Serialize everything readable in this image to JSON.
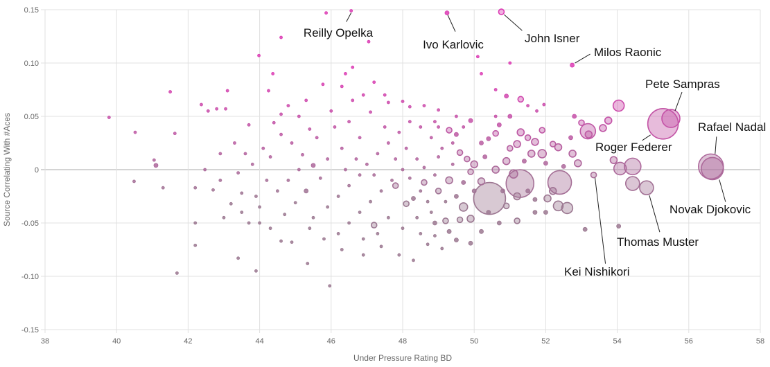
{
  "chart_data": {
    "type": "scatter",
    "title": "",
    "xlabel": "Under Pressure Rating BD",
    "ylabel": "Source Correlating With #Aces",
    "xlim": [
      38,
      58
    ],
    "ylim": [
      -0.15,
      0.15
    ],
    "xticks": [
      "38",
      "40",
      "42",
      "44",
      "46",
      "48",
      "50",
      "52",
      "54",
      "56",
      "58"
    ],
    "yticks": [
      "0.15",
      "0.10",
      "0.05",
      "0",
      "-0.05",
      "-0.10",
      "-0.15"
    ],
    "grid": true,
    "colors": {
      "high": "#dc3cb4",
      "low": "#9b7891",
      "zero_line": "#aaaaaa",
      "grid": "#e0e0e0"
    },
    "annotations": [
      {
        "label": "Reilly Opelka",
        "x": 46.56,
        "y": 0.149,
        "size": 2
      },
      {
        "label": "Ivo Karlovic",
        "x": 49.24,
        "y": 0.147,
        "size": 3
      },
      {
        "label": "John Isner",
        "x": 50.76,
        "y": 0.148,
        "size": 4
      },
      {
        "label": "Milos Raonic",
        "x": 52.74,
        "y": 0.098,
        "size": 3
      },
      {
        "label": "Pete Sampras",
        "x": 55.5,
        "y": 0.048,
        "size": 13
      },
      {
        "label": "Roger Federer",
        "x": 55.28,
        "y": 0.043,
        "size": 22
      },
      {
        "label": "Rafael Nadal",
        "x": 56.62,
        "y": 0.003,
        "size": 18
      },
      {
        "label": "Novak Djokovic",
        "x": 56.66,
        "y": 0.001,
        "size": 16
      },
      {
        "label": "Thomas Muster",
        "x": 54.82,
        "y": -0.017,
        "size": 10
      },
      {
        "label": "Kei Nishikori",
        "x": 53.34,
        "y": -0.005,
        "size": 4
      }
    ],
    "points": [
      [
        50.43,
        -0.027,
        23
      ],
      [
        51.28,
        -0.013,
        20
      ],
      [
        52.39,
        -0.012,
        17
      ],
      [
        54.43,
        0.003,
        12
      ],
      [
        54.08,
        0.001,
        9
      ],
      [
        54.43,
        -0.013,
        10
      ],
      [
        53.18,
        0.036,
        11
      ],
      [
        54.04,
        0.06,
        8
      ],
      [
        53.6,
        0.039,
        5
      ],
      [
        53.75,
        0.046,
        5
      ],
      [
        53.9,
        0.009,
        5
      ],
      [
        52.6,
        -0.036,
        8
      ],
      [
        52.35,
        -0.034,
        7
      ],
      [
        52.2,
        -0.02,
        5
      ],
      [
        51.9,
        0.015,
        6
      ],
      [
        52.05,
        -0.027,
        5
      ],
      [
        51.2,
        0.024,
        5
      ],
      [
        51.3,
        0.035,
        5
      ],
      [
        51.5,
        0.03,
        4
      ],
      [
        51.6,
        0.015,
        5
      ],
      [
        51.0,
        0.02,
        4
      ],
      [
        50.9,
        0.008,
        5
      ],
      [
        51.1,
        -0.004,
        6
      ],
      [
        50.6,
        0.0,
        5
      ],
      [
        51.7,
        0.026,
        5
      ],
      [
        51.9,
        0.037,
        4
      ],
      [
        52.2,
        0.024,
        4
      ],
      [
        52.35,
        0.021,
        5
      ],
      [
        52.75,
        0.015,
        5
      ],
      [
        52.9,
        0.006,
        5
      ],
      [
        53.2,
        0.033,
        5
      ],
      [
        52.8,
        0.05,
        3
      ],
      [
        51.3,
        0.066,
        4
      ],
      [
        51.0,
        0.05,
        3
      ],
      [
        50.6,
        0.034,
        4
      ],
      [
        50.4,
        0.029,
        3
      ],
      [
        49.5,
        0.033,
        3
      ],
      [
        49.3,
        0.037,
        4
      ],
      [
        49.6,
        0.016,
        4
      ],
      [
        49.8,
        0.01,
        4
      ],
      [
        50.0,
        0.005,
        5
      ],
      [
        49.9,
        -0.002,
        4
      ],
      [
        50.2,
        -0.011,
        5
      ],
      [
        49.7,
        -0.035,
        6
      ],
      [
        49.9,
        -0.046,
        5
      ],
      [
        49.6,
        -0.047,
        4
      ],
      [
        49.2,
        -0.048,
        4
      ],
      [
        48.9,
        -0.05,
        3
      ],
      [
        49.3,
        -0.01,
        5
      ],
      [
        49.0,
        -0.02,
        4
      ],
      [
        48.6,
        -0.012,
        4
      ],
      [
        48.3,
        -0.027,
        3
      ],
      [
        48.1,
        -0.032,
        4
      ],
      [
        47.8,
        -0.015,
        4
      ],
      [
        47.2,
        -0.052,
        4
      ],
      [
        51.2,
        -0.048,
        4
      ],
      [
        51.2,
        -0.025,
        5
      ],
      [
        50.9,
        -0.034,
        4
      ],
      [
        51.7,
        -0.04,
        3
      ],
      [
        51.5,
        -0.02,
        3
      ],
      [
        49.9,
        -0.069,
        3
      ],
      [
        49.5,
        -0.066,
        3
      ],
      [
        51.75,
        0.055,
        2
      ],
      [
        51.5,
        0.06,
        2
      ],
      [
        50.9,
        0.069,
        3
      ],
      [
        51.0,
        0.1,
        2
      ],
      [
        50.2,
        0.09,
        2
      ],
      [
        50.1,
        0.106,
        2
      ],
      [
        50.6,
        0.075,
        2
      ],
      [
        49.9,
        0.046,
        3
      ],
      [
        49.5,
        0.05,
        2
      ],
      [
        49.0,
        0.056,
        2
      ],
      [
        48.6,
        0.06,
        2
      ],
      [
        48.2,
        0.059,
        2
      ],
      [
        47.6,
        0.063,
        2
      ],
      [
        47.1,
        0.054,
        2
      ],
      [
        46.5,
        0.045,
        2
      ],
      [
        46.9,
        0.07,
        2
      ],
      [
        46.4,
        0.09,
        2
      ],
      [
        46.6,
        0.096,
        2
      ],
      [
        47.05,
        0.12,
        2
      ],
      [
        45.86,
        0.147,
        2
      ],
      [
        45.77,
        0.08,
        2
      ],
      [
        47.5,
        0.07,
        2
      ],
      [
        44.6,
        0.124,
        2
      ],
      [
        44.37,
        0.09,
        2
      ],
      [
        43.98,
        0.107,
        2
      ],
      [
        44.25,
        0.074,
        2
      ],
      [
        43.1,
        0.074,
        2
      ],
      [
        43.7,
        0.042,
        2
      ],
      [
        43.05,
        0.057,
        2
      ],
      [
        42.8,
        0.057,
        2
      ],
      [
        42.56,
        0.055,
        2
      ],
      [
        42.37,
        0.061,
        2
      ],
      [
        41.5,
        0.073,
        2
      ],
      [
        41.63,
        0.034,
        2
      ],
      [
        40.52,
        0.035,
        2
      ],
      [
        39.79,
        0.049,
        2
      ],
      [
        41.05,
        0.009,
        2
      ],
      [
        41.1,
        0.004,
        3
      ],
      [
        40.49,
        -0.011,
        2
      ],
      [
        41.3,
        -0.017,
        2
      ],
      [
        42.47,
        0.0,
        2
      ],
      [
        42.2,
        -0.017,
        2
      ],
      [
        42.2,
        -0.05,
        2
      ],
      [
        42.2,
        -0.071,
        2
      ],
      [
        41.69,
        -0.097,
        2
      ],
      [
        43.4,
        -0.083,
        2
      ],
      [
        43.9,
        -0.095,
        2
      ],
      [
        44.6,
        -0.067,
        2
      ],
      [
        44.9,
        -0.068,
        2
      ],
      [
        45.34,
        -0.088,
        2
      ],
      [
        45.96,
        -0.109,
        2
      ],
      [
        44.0,
        -0.05,
        2
      ],
      [
        43.7,
        -0.05,
        2
      ],
      [
        43.2,
        -0.032,
        2
      ],
      [
        43.5,
        -0.022,
        2
      ],
      [
        42.7,
        -0.019,
        2
      ],
      [
        42.9,
        -0.01,
        2
      ],
      [
        43.4,
        -0.003,
        2
      ],
      [
        43.8,
        0.005,
        2
      ],
      [
        44.1,
        0.02,
        2
      ],
      [
        44.6,
        0.033,
        2
      ],
      [
        44.4,
        0.044,
        2
      ],
      [
        44.9,
        0.025,
        2
      ],
      [
        45.2,
        0.014,
        2
      ],
      [
        45.5,
        0.004,
        3
      ],
      [
        45.7,
        -0.008,
        2
      ],
      [
        45.3,
        -0.02,
        3
      ],
      [
        45.0,
        -0.031,
        2
      ],
      [
        44.7,
        -0.042,
        2
      ],
      [
        45.5,
        -0.045,
        2
      ],
      [
        45.9,
        -0.035,
        2
      ],
      [
        46.2,
        -0.025,
        2
      ],
      [
        46.5,
        -0.015,
        2
      ],
      [
        46.8,
        -0.005,
        2
      ],
      [
        47.0,
        0.005,
        2
      ],
      [
        47.3,
        0.015,
        2
      ],
      [
        47.6,
        0.025,
        2
      ],
      [
        47.9,
        0.035,
        2
      ],
      [
        48.2,
        0.045,
        2
      ],
      [
        48.5,
        0.04,
        2
      ],
      [
        48.8,
        0.03,
        2
      ],
      [
        49.1,
        0.02,
        2
      ],
      [
        48.4,
        0.01,
        2
      ],
      [
        48.0,
        0.0,
        2
      ],
      [
        47.7,
        -0.01,
        2
      ],
      [
        47.4,
        -0.02,
        2
      ],
      [
        47.1,
        -0.03,
        2
      ],
      [
        46.8,
        -0.04,
        2
      ],
      [
        46.5,
        -0.05,
        2
      ],
      [
        46.2,
        -0.06,
        2
      ],
      [
        46.9,
        -0.065,
        2
      ],
      [
        47.4,
        -0.072,
        2
      ],
      [
        47.9,
        -0.08,
        2
      ],
      [
        48.3,
        -0.085,
        2
      ],
      [
        48.7,
        -0.07,
        2
      ],
      [
        49.1,
        -0.074,
        2
      ],
      [
        48.5,
        -0.06,
        2
      ],
      [
        48.0,
        -0.055,
        2
      ],
      [
        47.6,
        -0.045,
        2
      ],
      [
        48.8,
        -0.04,
        2
      ],
      [
        49.2,
        -0.03,
        2
      ],
      [
        48.5,
        -0.02,
        2
      ],
      [
        48.9,
        -0.005,
        2
      ],
      [
        49.4,
        0.005,
        2
      ],
      [
        48.1,
        0.02,
        2
      ],
      [
        47.5,
        0.04,
        2
      ],
      [
        46.8,
        0.03,
        2
      ],
      [
        46.3,
        0.02,
        2
      ],
      [
        45.9,
        0.01,
        2
      ],
      [
        46.1,
        0.04,
        2
      ],
      [
        45.6,
        0.03,
        2
      ],
      [
        45.1,
        0.05,
        2
      ],
      [
        44.8,
        0.06,
        2
      ],
      [
        45.3,
        0.065,
        2
      ],
      [
        46.0,
        0.055,
        2
      ],
      [
        46.6,
        0.065,
        2
      ],
      [
        44.3,
        0.012,
        2
      ],
      [
        44.2,
        -0.01,
        2
      ],
      [
        43.9,
        -0.025,
        2
      ],
      [
        44.5,
        -0.02,
        2
      ],
      [
        44.8,
        -0.01,
        2
      ],
      [
        45.1,
        0.0,
        2
      ],
      [
        46.4,
        0.0,
        2
      ],
      [
        46.7,
        0.01,
        2
      ],
      [
        47.2,
        -0.005,
        2
      ],
      [
        47.8,
        0.01,
        2
      ],
      [
        48.2,
        -0.008,
        2
      ],
      [
        48.6,
        0.002,
        2
      ],
      [
        49.0,
        0.012,
        2
      ],
      [
        49.4,
        0.025,
        2
      ],
      [
        49.7,
        0.04,
        2
      ],
      [
        50.2,
        0.025,
        3
      ],
      [
        50.3,
        0.012,
        3
      ],
      [
        50.0,
        -0.02,
        3
      ],
      [
        49.7,
        -0.012,
        3
      ],
      [
        49.5,
        -0.025,
        3
      ],
      [
        50.4,
        -0.04,
        3
      ],
      [
        50.7,
        -0.05,
        3
      ],
      [
        50.2,
        -0.058,
        3
      ],
      [
        49.3,
        -0.058,
        3
      ],
      [
        48.9,
        -0.062,
        2
      ],
      [
        48.4,
        -0.045,
        2
      ],
      [
        47.3,
        -0.06,
        2
      ],
      [
        46.9,
        -0.08,
        2
      ],
      [
        46.3,
        -0.075,
        2
      ],
      [
        45.8,
        -0.065,
        2
      ],
      [
        45.4,
        -0.055,
        2
      ],
      [
        44.3,
        -0.055,
        2
      ],
      [
        44.0,
        -0.035,
        2
      ],
      [
        43.5,
        -0.04,
        2
      ],
      [
        43.0,
        -0.045,
        2
      ],
      [
        42.9,
        0.015,
        2
      ],
      [
        43.3,
        0.025,
        2
      ],
      [
        43.6,
        0.015,
        2
      ],
      [
        44.6,
        0.052,
        2
      ],
      [
        45.4,
        0.038,
        2
      ],
      [
        46.3,
        0.078,
        2
      ],
      [
        47.2,
        0.082,
        2
      ],
      [
        48.0,
        0.064,
        2
      ],
      [
        48.9,
        0.045,
        2
      ],
      [
        50.6,
        0.05,
        2
      ],
      [
        51.95,
        0.061,
        2
      ],
      [
        53.1,
        -0.056,
        3
      ],
      [
        54.04,
        -0.053,
        3
      ],
      [
        52.0,
        -0.04,
        3
      ],
      [
        51.7,
        -0.028,
        3
      ],
      [
        50.8,
        -0.02,
        3
      ],
      [
        51.4,
        0.008,
        3
      ],
      [
        52.5,
        0.003,
        3
      ],
      [
        52.7,
        0.03,
        3
      ],
      [
        53.0,
        0.044,
        4
      ],
      [
        52.0,
        0.006,
        3
      ],
      [
        50.7,
        0.042,
        3
      ],
      [
        49.0,
        0.04,
        2
      ],
      [
        48.7,
        -0.03,
        2
      ]
    ]
  }
}
